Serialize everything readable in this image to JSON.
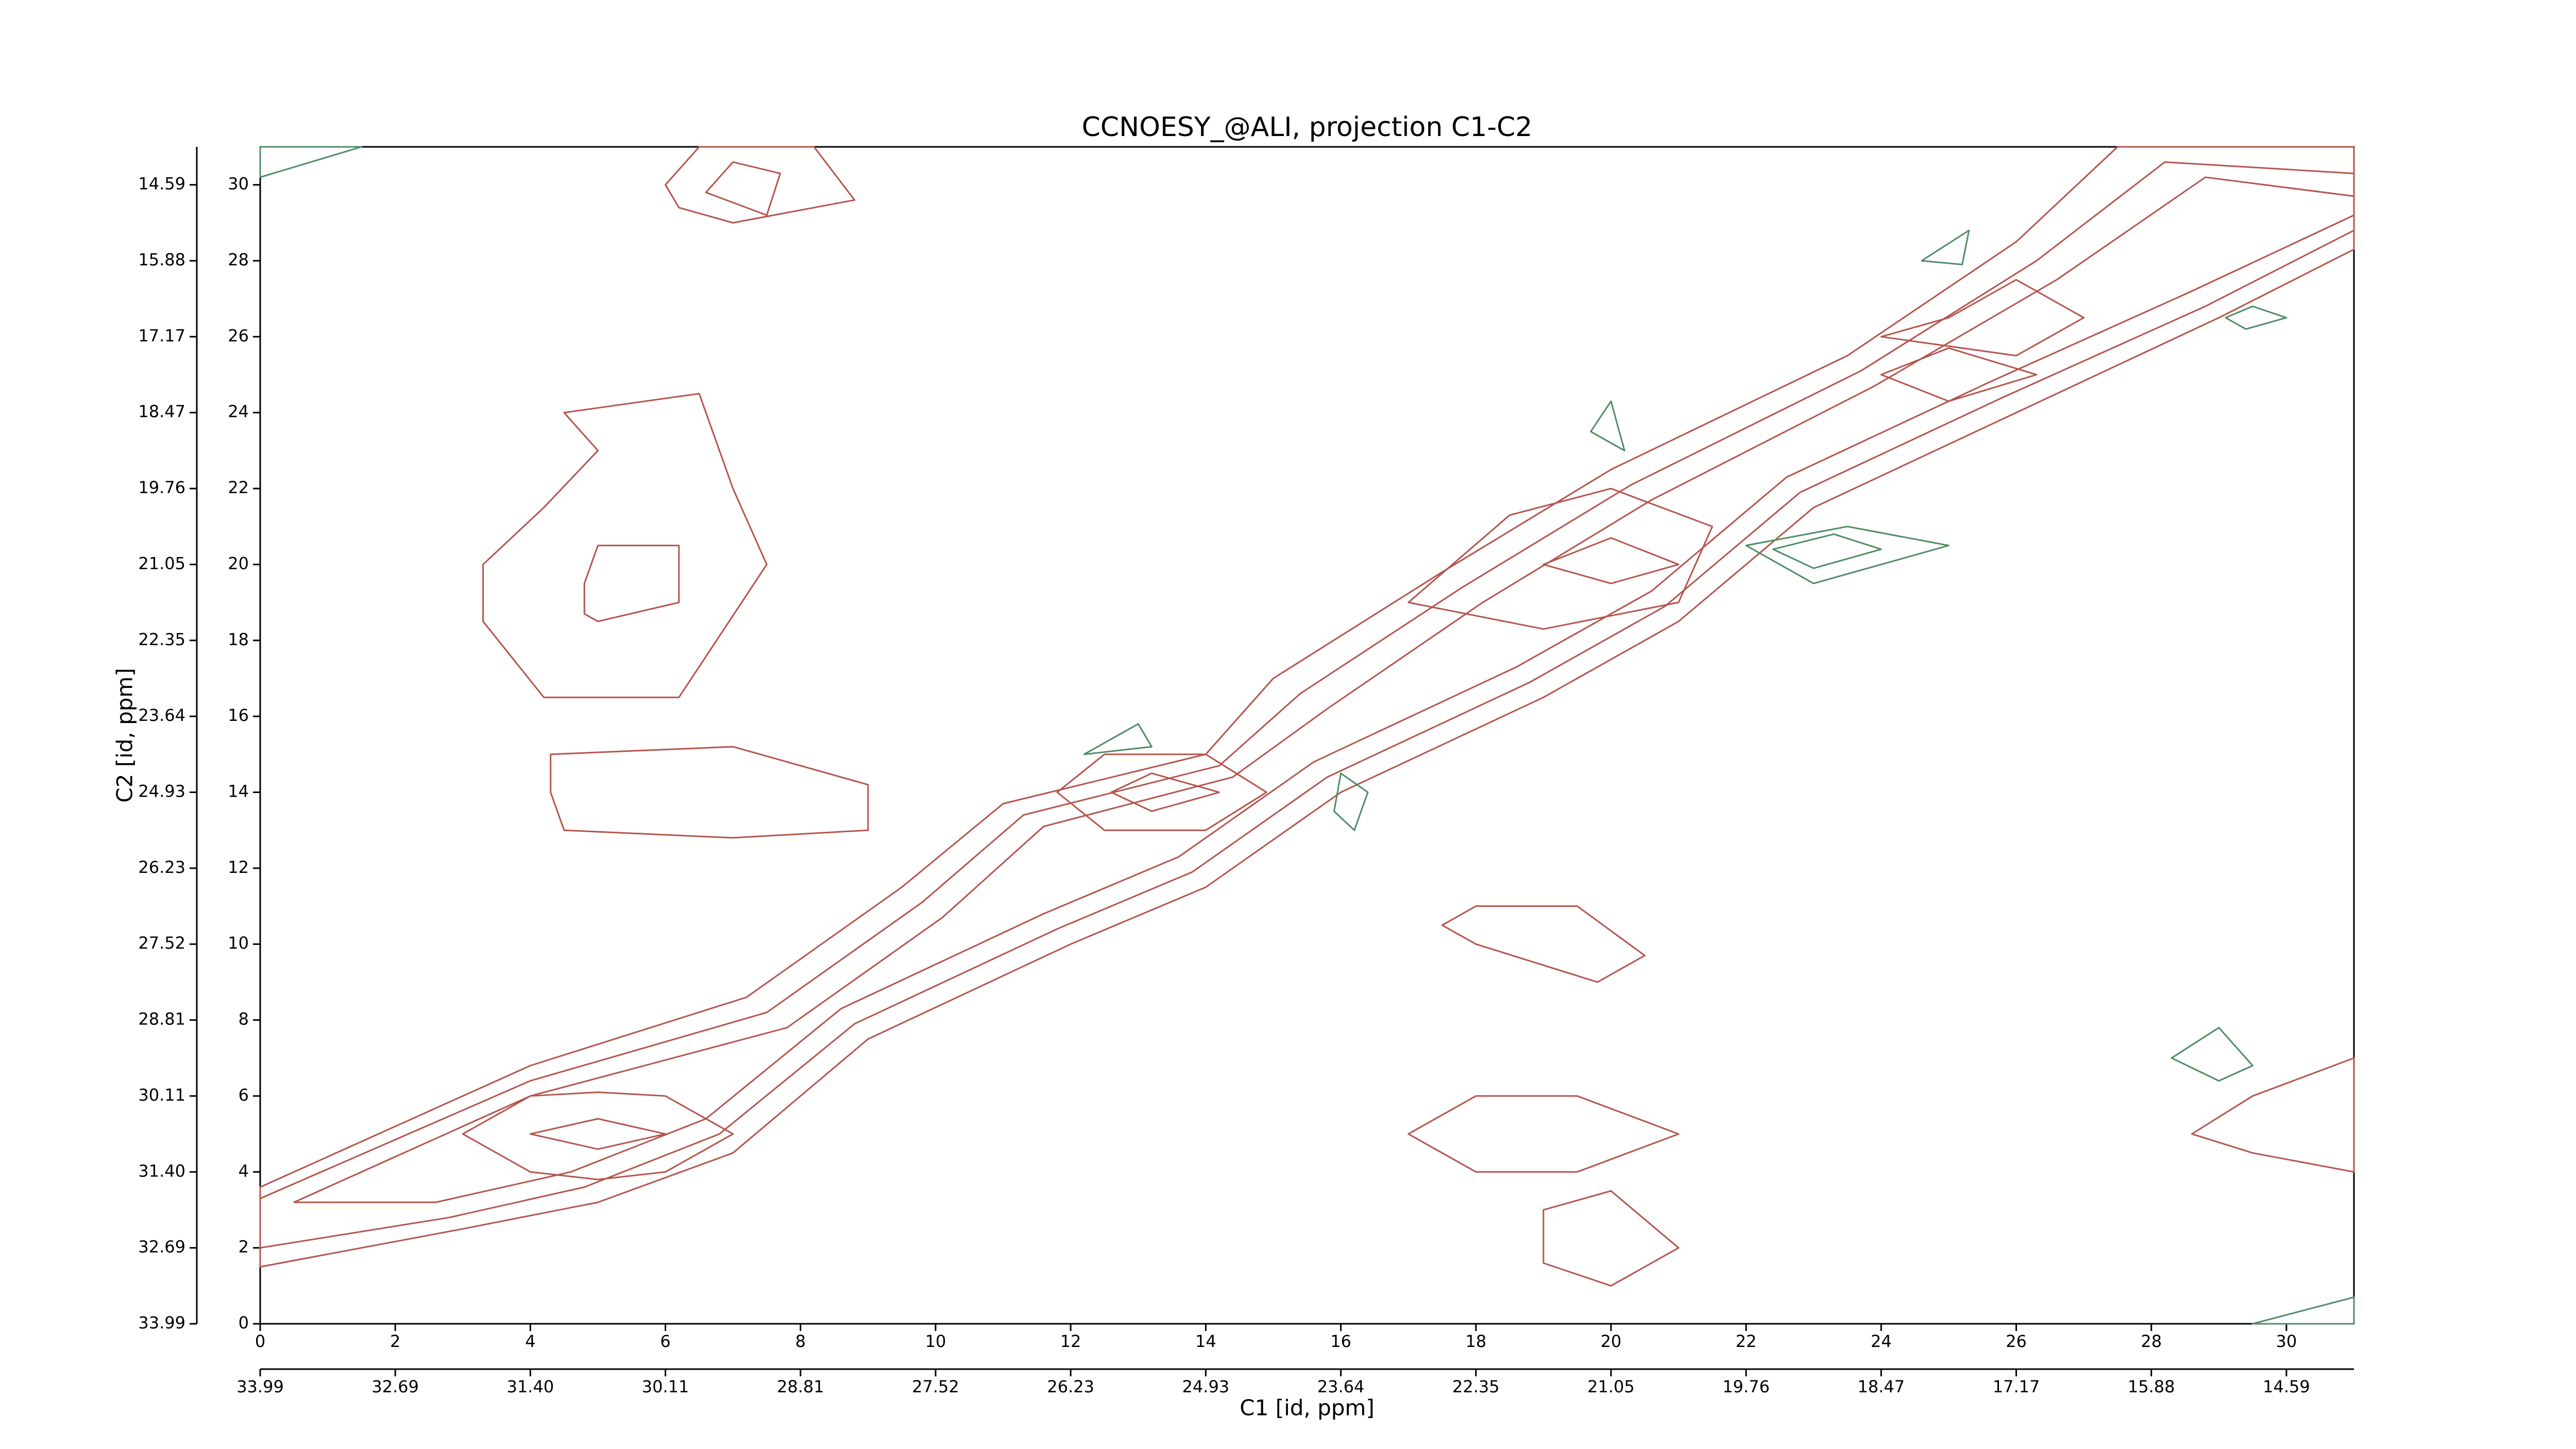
{
  "chart_data": {
    "type": "contour",
    "title": "CCNOESY_@ALI, projection C1-C2",
    "x_label": "C1 [id, ppm]",
    "y_label": "C2 [id, ppm]",
    "xlim": [
      0,
      31
    ],
    "ylim": [
      0,
      31
    ],
    "xticks": [
      0,
      2,
      4,
      6,
      8,
      10,
      12,
      14,
      16,
      18,
      20,
      22,
      24,
      26,
      28,
      30
    ],
    "yticks": [
      0,
      2,
      4,
      6,
      8,
      10,
      12,
      14,
      16,
      18,
      20,
      22,
      24,
      26,
      28,
      30
    ],
    "x2ticks": [
      {
        "value": 0,
        "label": "33.99"
      },
      {
        "value": 2,
        "label": "32.69"
      },
      {
        "value": 4,
        "label": "31.40"
      },
      {
        "value": 6,
        "label": "30.11"
      },
      {
        "value": 8,
        "label": "28.81"
      },
      {
        "value": 10,
        "label": "27.52"
      },
      {
        "value": 12,
        "label": "26.23"
      },
      {
        "value": 14,
        "label": "24.93"
      },
      {
        "value": 16,
        "label": "23.64"
      },
      {
        "value": 18,
        "label": "22.35"
      },
      {
        "value": 20,
        "label": "21.05"
      },
      {
        "value": 22,
        "label": "19.76"
      },
      {
        "value": 24,
        "label": "18.47"
      },
      {
        "value": 26,
        "label": "17.17"
      },
      {
        "value": 28,
        "label": "15.88"
      },
      {
        "value": 30,
        "label": "14.59"
      }
    ],
    "y2ticks": [
      {
        "value": 0,
        "label": "33.99"
      },
      {
        "value": 2,
        "label": "32.69"
      },
      {
        "value": 4,
        "label": "31.40"
      },
      {
        "value": 6,
        "label": "30.11"
      },
      {
        "value": 8,
        "label": "28.81"
      },
      {
        "value": 10,
        "label": "27.52"
      },
      {
        "value": 12,
        "label": "26.23"
      },
      {
        "value": 14,
        "label": "24.93"
      },
      {
        "value": 16,
        "label": "23.64"
      },
      {
        "value": 18,
        "label": "22.35"
      },
      {
        "value": 20,
        "label": "21.05"
      },
      {
        "value": 22,
        "label": "19.76"
      },
      {
        "value": 24,
        "label": "18.47"
      },
      {
        "value": 26,
        "label": "17.17"
      },
      {
        "value": 28,
        "label": "15.88"
      },
      {
        "value": 30,
        "label": "14.59"
      }
    ],
    "contours": [
      {
        "color": "#b5544c",
        "x": [
          0,
          4,
          7.2,
          9.5,
          11,
          14,
          15,
          17.5,
          20,
          23.5,
          26,
          27.5,
          31,
          31,
          29,
          26,
          23,
          21,
          19,
          16,
          14,
          12,
          9,
          7,
          5,
          3,
          0
        ],
        "y": [
          3.6,
          6.8,
          8.6,
          11.5,
          13.7,
          15,
          17,
          19.8,
          22.5,
          25.5,
          28.5,
          31,
          31,
          28.3,
          26.5,
          24,
          21.5,
          18.5,
          16.5,
          14,
          11.5,
          10,
          7.5,
          4.5,
          3.2,
          2.5,
          1.5
        ]
      },
      {
        "color": "#b5544c",
        "x": [
          0,
          4,
          7.5,
          9.8,
          11.3,
          14.2,
          15.4,
          17.8,
          20.3,
          23.7,
          26.3,
          28.2,
          31,
          31,
          28.8,
          25.8,
          22.8,
          20.8,
          18.8,
          15.8,
          13.8,
          11.8,
          8.8,
          6.8,
          4.8,
          2.8,
          0
        ],
        "y": [
          3.3,
          6.4,
          8.2,
          11.1,
          13.4,
          14.7,
          16.6,
          19.4,
          22.1,
          25.1,
          28,
          30.6,
          30.3,
          28.8,
          26.8,
          24.4,
          21.9,
          18.9,
          16.9,
          14.4,
          11.9,
          10.4,
          7.9,
          5,
          3.6,
          2.8,
          2
        ]
      },
      {
        "color": "#b5544c",
        "x": [
          0.5,
          4,
          7.8,
          10.1,
          11.6,
          14.4,
          15.8,
          18.1,
          20.6,
          23.9,
          26.6,
          28.8,
          31,
          31,
          28.6,
          25.6,
          22.6,
          20.6,
          18.6,
          15.6,
          13.6,
          11.6,
          8.6,
          6.6,
          4.6,
          2.6
        ],
        "y": [
          3.2,
          6.0,
          7.8,
          10.7,
          13.1,
          14.4,
          16.2,
          19,
          21.7,
          24.7,
          27.5,
          30.2,
          29.7,
          29.2,
          27.2,
          24.8,
          22.3,
          19.3,
          17.3,
          14.8,
          12.3,
          10.8,
          8.3,
          5.4,
          4.0,
          3.2
        ]
      },
      {
        "color": "#b5544c",
        "x": [
          3,
          4,
          5,
          6,
          7,
          6,
          5,
          4
        ],
        "y": [
          5,
          6,
          6.1,
          6,
          5,
          4,
          3.8,
          4
        ]
      },
      {
        "color": "#b5544c",
        "x": [
          4,
          5,
          6,
          5
        ],
        "y": [
          5,
          5.4,
          5,
          4.6
        ]
      },
      {
        "color": "#b5544c",
        "x": [
          11.8,
          12.5,
          14,
          14.9,
          14,
          12.5
        ],
        "y": [
          14,
          15,
          15,
          14,
          13,
          13
        ]
      },
      {
        "color": "#b5544c",
        "x": [
          12.6,
          13.2,
          14.2,
          13.2
        ],
        "y": [
          14,
          14.5,
          14,
          13.5
        ]
      },
      {
        "color": "#b5544c",
        "x": [
          17,
          18.5,
          20,
          21.5,
          21,
          19
        ],
        "y": [
          19,
          21.3,
          22,
          21,
          19,
          18.3
        ]
      },
      {
        "color": "#b5544c",
        "x": [
          19,
          20,
          21,
          20
        ],
        "y": [
          20,
          20.7,
          20,
          19.5
        ]
      },
      {
        "color": "#b5544c",
        "x": [
          24,
          25,
          26.3,
          25
        ],
        "y": [
          25,
          25.7,
          25,
          24.3
        ]
      },
      {
        "color": "#b5544c",
        "x": [
          3.3,
          4.2,
          5,
          4.5,
          6.5,
          7,
          7.5,
          6.2,
          4.2,
          3.3
        ],
        "y": [
          20,
          21.5,
          23,
          24,
          24.5,
          22,
          20,
          16.5,
          16.5,
          18.5
        ]
      },
      {
        "color": "#b5544c",
        "x": [
          4.8,
          5,
          6.2,
          6.2,
          5,
          4.8
        ],
        "y": [
          19.5,
          20.5,
          20.5,
          19,
          18.5,
          18.7
        ]
      },
      {
        "color": "#b5544c",
        "x": [
          6,
          6.5,
          8.2,
          8.8,
          7,
          6.2
        ],
        "y": [
          30,
          31,
          31,
          29.6,
          29,
          29.4
        ]
      },
      {
        "color": "#b5544c",
        "x": [
          6.6,
          7,
          7.7,
          7.5
        ],
        "y": [
          29.8,
          30.6,
          30.3,
          29.2
        ]
      },
      {
        "color": "#b5544c",
        "x": [
          4.3,
          4.3,
          7,
          9,
          9,
          7,
          4.5
        ],
        "y": [
          14,
          15,
          15.2,
          14.2,
          13,
          12.8,
          13
        ]
      },
      {
        "color": "#b5544c",
        "x": [
          17,
          18,
          19.5,
          21,
          19.5,
          18
        ],
        "y": [
          5,
          6,
          6,
          5,
          4,
          4
        ]
      },
      {
        "color": "#b5544c",
        "x": [
          19,
          20,
          21,
          20,
          19
        ],
        "y": [
          3,
          3.5,
          2,
          1,
          1.6
        ]
      },
      {
        "color": "#b5544c",
        "x": [
          17.5,
          18,
          19.5,
          20.5,
          19.8,
          18
        ],
        "y": [
          10.5,
          11,
          11,
          9.7,
          9,
          10
        ]
      },
      {
        "color": "#b5544c",
        "x": [
          28.6,
          29.5,
          31,
          31,
          29.5
        ],
        "y": [
          5,
          6,
          7,
          4,
          4.5
        ]
      },
      {
        "color": "#b5544c",
        "x": [
          24,
          25,
          26,
          27,
          26
        ],
        "y": [
          26,
          26.5,
          27.5,
          26.5,
          25.5
        ]
      },
      {
        "color": "#4f8c64",
        "x": [
          16,
          16.4,
          16.2,
          15.9
        ],
        "y": [
          14.5,
          14,
          13,
          13.5
        ]
      },
      {
        "color": "#4f8c64",
        "x": [
          22,
          23.5,
          25,
          23
        ],
        "y": [
          20.5,
          21,
          20.5,
          19.5
        ]
      },
      {
        "color": "#4f8c64",
        "x": [
          22.4,
          23.3,
          24,
          23
        ],
        "y": [
          20.4,
          20.8,
          20.4,
          19.9
        ]
      },
      {
        "color": "#4f8c64",
        "x": [
          28.3,
          29,
          29.5,
          29
        ],
        "y": [
          7,
          7.8,
          6.8,
          6.4
        ]
      },
      {
        "color": "#4f8c64",
        "x": [
          12.2,
          13,
          13.2
        ],
        "y": [
          15,
          15.8,
          15.2
        ]
      },
      {
        "color": "#4f8c64",
        "x": [
          19.7,
          20,
          20.2
        ],
        "y": [
          23.5,
          24.3,
          23
        ]
      },
      {
        "color": "#4f8c64",
        "x": [
          24.6,
          25.3,
          25.2
        ],
        "y": [
          28,
          28.8,
          27.9
        ]
      },
      {
        "color": "#4f8c64",
        "x": [
          29.1,
          29.5,
          30,
          29.4
        ],
        "y": [
          26.5,
          26.8,
          26.5,
          26.2
        ]
      },
      {
        "color": "#4f8c64",
        "x": [
          29.5,
          31,
          31
        ],
        "y": [
          0,
          0.7,
          0
        ]
      },
      {
        "color": "#4f8c64",
        "x": [
          0,
          1.5,
          0
        ],
        "y": [
          30.2,
          31,
          31
        ]
      }
    ]
  }
}
